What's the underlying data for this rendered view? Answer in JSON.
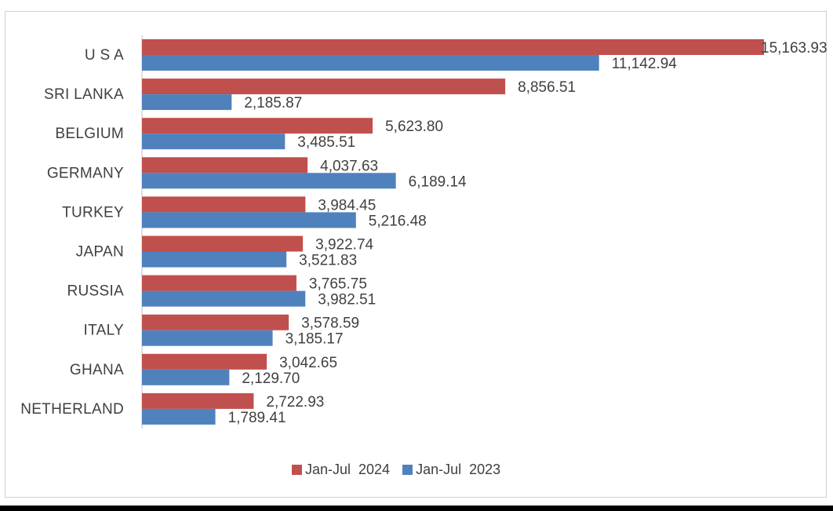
{
  "chart_data": {
    "type": "bar",
    "orientation": "horizontal",
    "categories": [
      "U S A",
      "SRI LANKA",
      "BELGIUM",
      "GERMANY",
      "TURKEY",
      "JAPAN",
      "RUSSIA",
      "ITALY",
      "GHANA",
      "NETHERLAND"
    ],
    "series": [
      {
        "name": "Jan-Jul  2024",
        "color": "#c0504d",
        "values": [
          15163.93,
          8856.51,
          5623.8,
          4037.63,
          3984.45,
          3922.74,
          3765.75,
          3578.59,
          3042.65,
          2722.93
        ],
        "labels": [
          "15,163.93",
          "8,856.51",
          "5,623.80",
          "4,037.63",
          "3,984.45",
          "3,922.74",
          "3,765.75",
          "3,578.59",
          "3,042.65",
          "2,722.93"
        ]
      },
      {
        "name": "Jan-Jul  2023",
        "color": "#4f81bd",
        "values": [
          11142.94,
          2185.87,
          3485.51,
          6189.14,
          5216.48,
          3521.83,
          3982.51,
          3185.17,
          2129.7,
          1789.41
        ],
        "labels": [
          "11,142.94",
          "2,185.87",
          "3,485.51",
          "6,189.14",
          "5,216.48",
          "3,521.83",
          "3,982.51",
          "3,185.17",
          "2,129.70",
          "1,789.41"
        ]
      }
    ],
    "xlim": [
      0,
      15163.93
    ],
    "title": "",
    "xlabel": "",
    "ylabel": "",
    "grid": false,
    "legend_position": "bottom"
  }
}
